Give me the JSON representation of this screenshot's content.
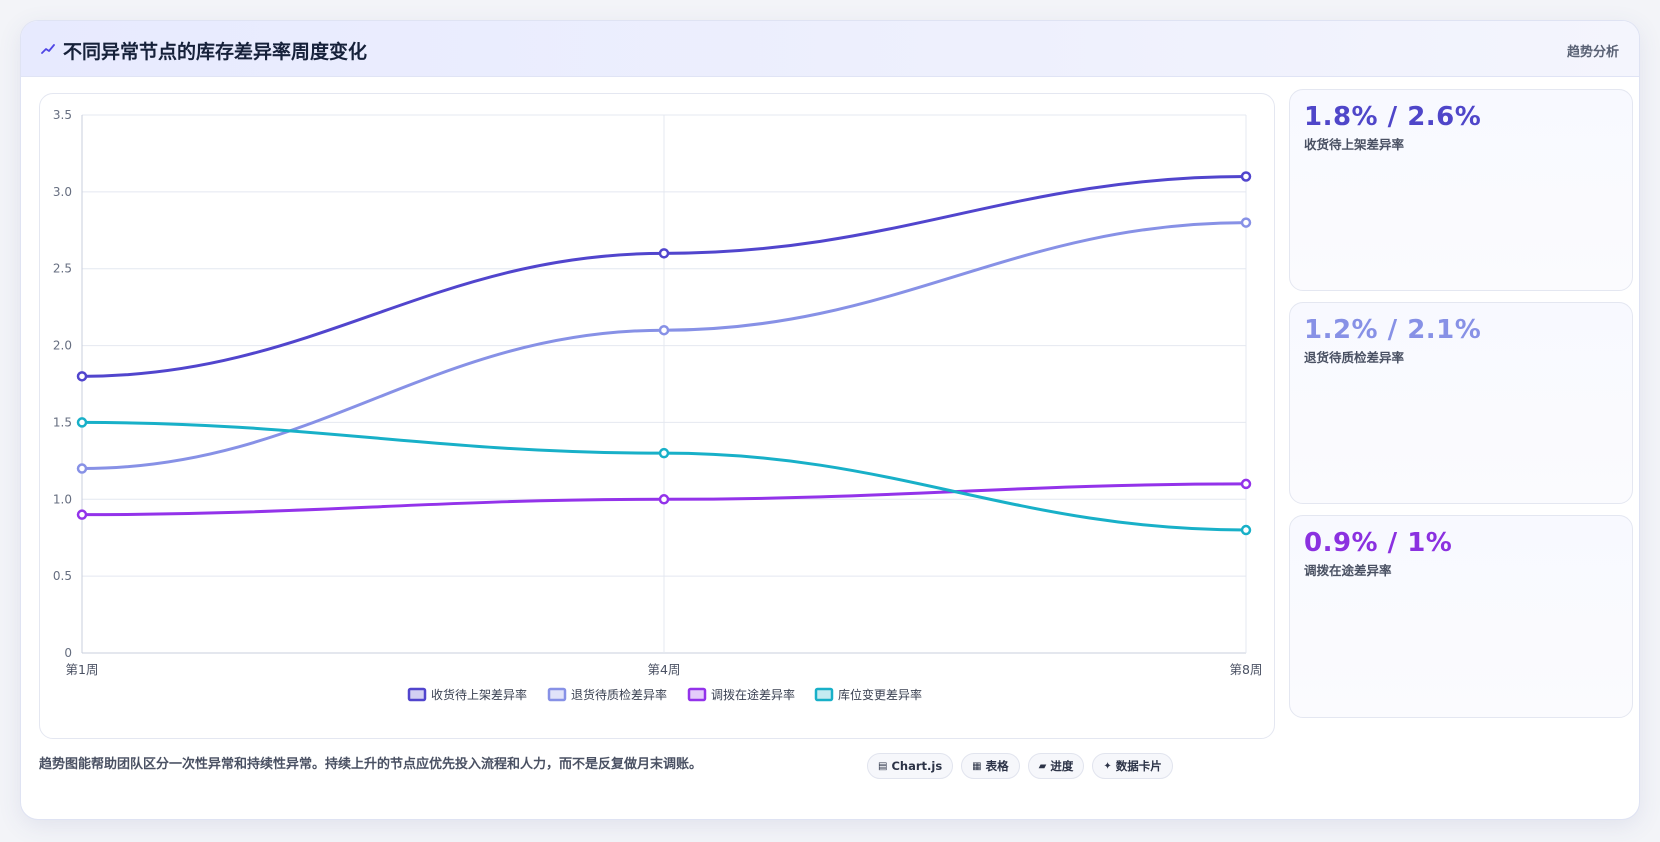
{
  "header": {
    "title": "不同异常节点的库存差异率周度变化",
    "icon": "trend-line-icon",
    "right_label": "趋势分析"
  },
  "chart_data": {
    "type": "line",
    "title": "不同异常节点的库存差异率周度变化",
    "categories": [
      "第1周",
      "第4周",
      "第8周"
    ],
    "ylim": [
      0,
      3.5
    ],
    "yticks": [
      "0",
      "0.5",
      "1.0",
      "1.5",
      "2.0",
      "2.5",
      "3.0",
      "3.5"
    ],
    "grid": true,
    "legend_position": "bottom",
    "series": [
      {
        "name": "收货待上架差异率",
        "values": [
          1.8,
          2.6,
          3.1
        ],
        "color": "#5145cd"
      },
      {
        "name": "退货待质检差异率",
        "values": [
          1.2,
          2.1,
          2.8
        ],
        "color": "#8791e6"
      },
      {
        "name": "调拨在途差异率",
        "values": [
          0.9,
          1.0,
          1.1
        ],
        "color": "#9333ea"
      },
      {
        "name": "库位变更差异率",
        "values": [
          1.5,
          1.3,
          0.8
        ],
        "color": "#18b0c8"
      }
    ]
  },
  "stats": [
    {
      "value": "1.8% / 2.6%",
      "label": "收货待上架差异率",
      "color": "#4f46c9"
    },
    {
      "value": "1.2% / 2.1%",
      "label": "退货待质检差异率",
      "color": "#8791e6"
    },
    {
      "value": "0.9% / 1%",
      "label": "调拨在途差异率",
      "color": "#8b31e0"
    }
  ],
  "footer": {
    "text": "趋势图能帮助团队区分一次性异常和持续性异常。持续上升的节点应优先投入流程和人力，而不是反复做月末调账。",
    "chips": [
      {
        "icon": "▤",
        "label": "Chart.js"
      },
      {
        "icon": "▦",
        "label": "表格"
      },
      {
        "icon": "▰",
        "label": "进度"
      },
      {
        "icon": "✦",
        "label": "数据卡片"
      }
    ]
  }
}
